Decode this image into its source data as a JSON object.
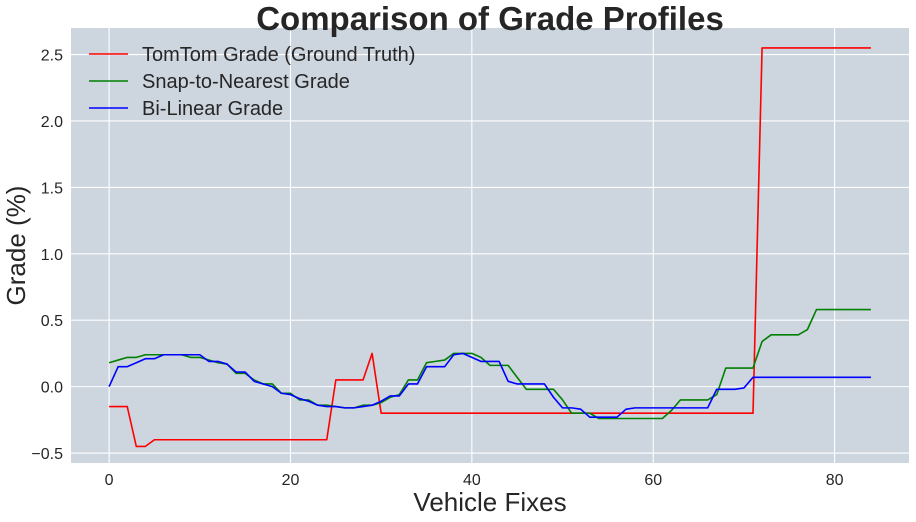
{
  "chart_data": {
    "type": "line",
    "title": "Comparison of Grade Profiles",
    "xlabel": "Vehicle Fixes",
    "ylabel": "Grade (%)",
    "xlim": [
      -4.2,
      88.2
    ],
    "ylim": [
      -0.575,
      2.7
    ],
    "xticks": [
      0,
      20,
      40,
      60,
      80
    ],
    "xtick_labels": [
      "0",
      "20",
      "40",
      "60",
      "80"
    ],
    "yticks": [
      -0.5,
      0.0,
      0.5,
      1.0,
      1.5,
      2.0,
      2.5
    ],
    "ytick_labels": [
      "−0.5",
      "0.0",
      "0.5",
      "1.0",
      "1.5",
      "2.0",
      "2.5"
    ],
    "grid": true,
    "legend_position": "top-left",
    "background_color": "#cdd5df",
    "grid_color": "#ffffff",
    "x": [
      0,
      1,
      2,
      3,
      4,
      5,
      6,
      7,
      8,
      9,
      10,
      11,
      12,
      13,
      14,
      15,
      16,
      17,
      18,
      19,
      20,
      21,
      22,
      23,
      24,
      25,
      26,
      27,
      28,
      29,
      30,
      31,
      32,
      33,
      34,
      35,
      36,
      37,
      38,
      39,
      40,
      41,
      42,
      43,
      44,
      45,
      46,
      47,
      48,
      49,
      50,
      51,
      52,
      53,
      54,
      55,
      56,
      57,
      58,
      59,
      60,
      61,
      62,
      63,
      64,
      65,
      66,
      67,
      68,
      69,
      70,
      71,
      72,
      73,
      74,
      75,
      76,
      77,
      78,
      79,
      80,
      81,
      82,
      83,
      84
    ],
    "series": [
      {
        "name": "TomTom Grade (Ground Truth)",
        "color": "#ff0000",
        "values": [
          -0.15,
          -0.15,
          -0.15,
          -0.45,
          -0.45,
          -0.4,
          -0.4,
          -0.4,
          -0.4,
          -0.4,
          -0.4,
          -0.4,
          -0.4,
          -0.4,
          -0.4,
          -0.4,
          -0.4,
          -0.4,
          -0.4,
          -0.4,
          -0.4,
          -0.4,
          -0.4,
          -0.4,
          -0.4,
          0.05,
          0.05,
          0.05,
          0.05,
          0.25,
          -0.2,
          -0.2,
          -0.2,
          -0.2,
          -0.2,
          -0.2,
          -0.2,
          -0.2,
          -0.2,
          -0.2,
          -0.2,
          -0.2,
          -0.2,
          -0.2,
          -0.2,
          -0.2,
          -0.2,
          -0.2,
          -0.2,
          -0.2,
          -0.2,
          -0.2,
          -0.2,
          -0.2,
          -0.2,
          -0.2,
          -0.2,
          -0.2,
          -0.2,
          -0.2,
          -0.2,
          -0.2,
          -0.2,
          -0.2,
          -0.2,
          -0.2,
          -0.2,
          -0.2,
          -0.2,
          -0.2,
          -0.2,
          -0.2,
          2.55,
          2.55,
          2.55,
          2.55,
          2.55,
          2.55,
          2.55,
          2.55,
          2.55,
          2.55,
          2.55,
          2.55,
          2.55
        ]
      },
      {
        "name": "Snap-to-Nearest Grade",
        "color": "#008000",
        "values": [
          0.18,
          0.2,
          0.22,
          0.22,
          0.24,
          0.24,
          0.24,
          0.24,
          0.24,
          0.22,
          0.22,
          0.2,
          0.18,
          0.17,
          0.1,
          0.1,
          0.05,
          0.02,
          0.02,
          -0.05,
          -0.05,
          -0.1,
          -0.1,
          -0.14,
          -0.14,
          -0.15,
          -0.16,
          -0.16,
          -0.14,
          -0.14,
          -0.12,
          -0.08,
          -0.06,
          0.05,
          0.05,
          0.18,
          0.19,
          0.2,
          0.25,
          0.25,
          0.25,
          0.22,
          0.16,
          0.16,
          0.16,
          0.07,
          -0.02,
          -0.02,
          -0.02,
          -0.02,
          -0.1,
          -0.2,
          -0.2,
          -0.2,
          -0.24,
          -0.24,
          -0.24,
          -0.24,
          -0.24,
          -0.24,
          -0.24,
          -0.24,
          -0.18,
          -0.1,
          -0.1,
          -0.1,
          -0.1,
          -0.06,
          0.14,
          0.14,
          0.14,
          0.14,
          0.34,
          0.39,
          0.39,
          0.39,
          0.39,
          0.43,
          0.58,
          0.58,
          0.58,
          0.58,
          0.58,
          0.58,
          0.58
        ]
      },
      {
        "name": "Bi-Linear Grade",
        "color": "#0000ff",
        "values": [
          0.0,
          0.15,
          0.15,
          0.18,
          0.21,
          0.21,
          0.24,
          0.24,
          0.24,
          0.24,
          0.24,
          0.19,
          0.19,
          0.17,
          0.11,
          0.11,
          0.04,
          0.02,
          0.0,
          -0.05,
          -0.06,
          -0.09,
          -0.11,
          -0.14,
          -0.15,
          -0.15,
          -0.16,
          -0.16,
          -0.15,
          -0.14,
          -0.11,
          -0.07,
          -0.07,
          0.02,
          0.02,
          0.15,
          0.15,
          0.15,
          0.24,
          0.25,
          0.22,
          0.19,
          0.19,
          0.19,
          0.04,
          0.02,
          0.02,
          0.02,
          0.02,
          -0.08,
          -0.16,
          -0.16,
          -0.17,
          -0.23,
          -0.23,
          -0.23,
          -0.23,
          -0.17,
          -0.16,
          -0.16,
          -0.16,
          -0.16,
          -0.16,
          -0.16,
          -0.16,
          -0.16,
          -0.16,
          -0.02,
          -0.02,
          -0.02,
          -0.01,
          0.07,
          0.07,
          0.07,
          0.07,
          0.07,
          0.07,
          0.07,
          0.07,
          0.07,
          0.07,
          0.07,
          0.07,
          0.07,
          0.07
        ]
      }
    ]
  }
}
